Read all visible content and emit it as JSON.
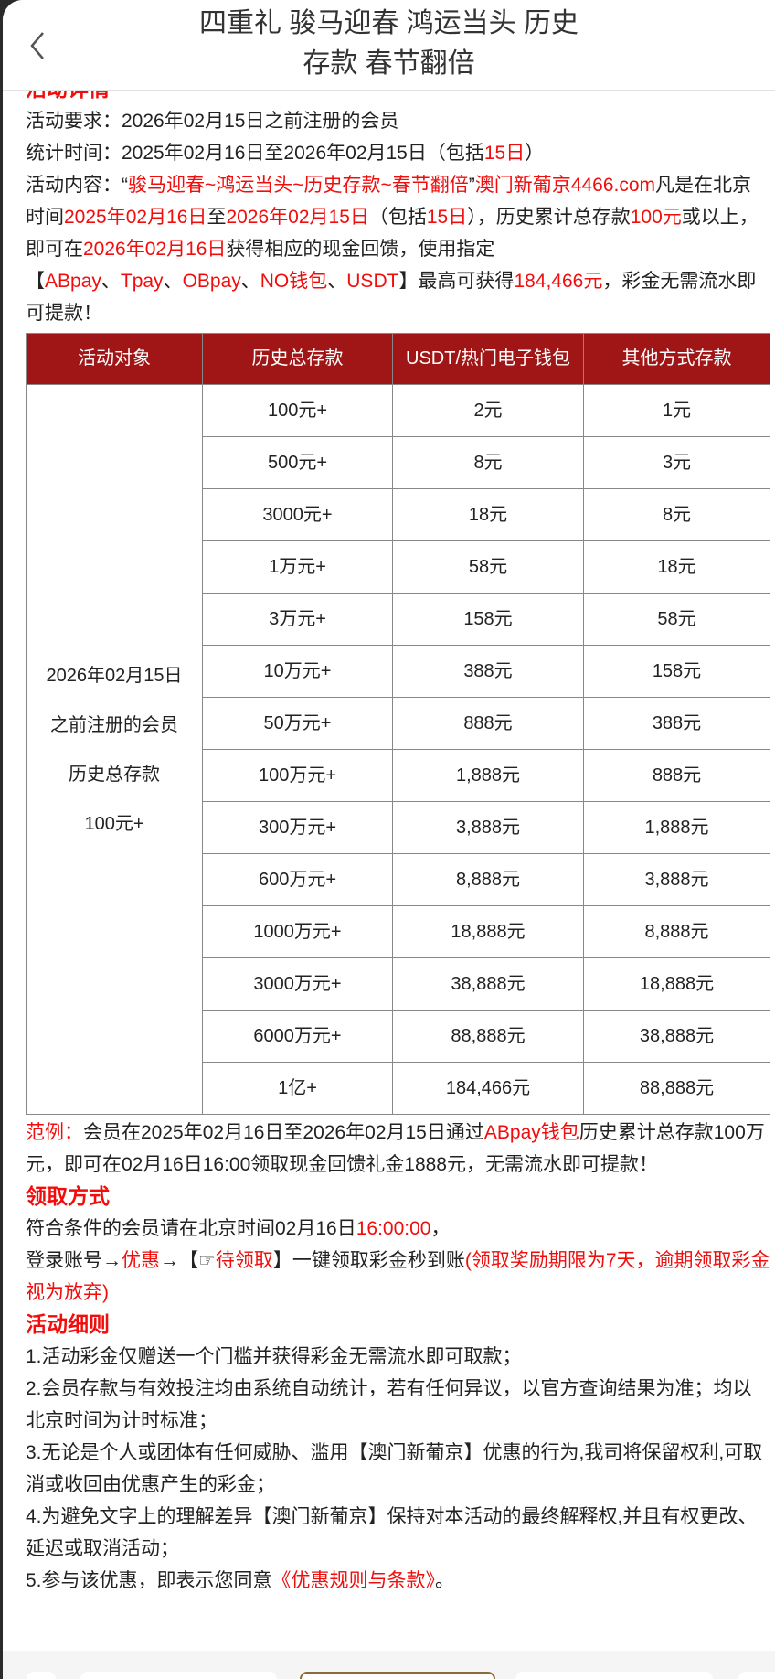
{
  "header": {
    "title_line1": "四重礼 骏马迎春 鸿运当头 历史",
    "title_line2": "存款 春节翻倍",
    "back_icon": "chevron-left-icon"
  },
  "details": {
    "heading": "活动详情",
    "req_label": "活动要求：",
    "req_value": "2026年02月15日之前注册的会员",
    "time_label": "统计时间：",
    "time_value": "2025年02月16日至2026年02月15日（包括",
    "time_red": "15日",
    "time_end": "）",
    "content_label": "活动内容：“",
    "content_red1": "骏马迎春~鸿运当头~历史存款~春节翻倍",
    "content_q": "”",
    "content_red2": "澳门新葡京4466.com",
    "content_t1": "凡是在北京时间",
    "content_red3": "2025年02月16日",
    "content_t2": "至",
    "content_red4": "2026年02月15日",
    "content_t3": "（包括",
    "content_red5": "15日",
    "content_t4": "），历史累计总存款",
    "content_red6": "100元",
    "content_t5": "或以上，即可在",
    "content_red7": "2026年02月16日",
    "content_t6": "获得相应的现金回馈，使用指定",
    "content_t7": "【",
    "content_red8": "ABpay",
    "sep": "、",
    "content_red9": "Tpay",
    "content_red10": "OBpay",
    "content_red11": "NO钱包",
    "content_red12": "USDT",
    "content_t8": "】最高可获得",
    "content_red13": "184,466元",
    "content_t9": "，彩金无需流水即可提款！"
  },
  "table": {
    "headers": [
      "活动对象",
      "历史总存款",
      "USDT/热门电子钱包",
      "其他方式存款"
    ],
    "object_lines": [
      "2026年02月15日",
      "之前注册的会员",
      "历史总存款",
      "100元+"
    ],
    "rows": [
      [
        "100元+",
        "2元",
        "1元"
      ],
      [
        "500元+",
        "8元",
        "3元"
      ],
      [
        "3000元+",
        "18元",
        "8元"
      ],
      [
        "1万元+",
        "58元",
        "18元"
      ],
      [
        "3万元+",
        "158元",
        "58元"
      ],
      [
        "10万元+",
        "388元",
        "158元"
      ],
      [
        "50万元+",
        "888元",
        "388元"
      ],
      [
        "100万元+",
        "1,888元",
        "888元"
      ],
      [
        "300万元+",
        "3,888元",
        "1,888元"
      ],
      [
        "600万元+",
        "8,888元",
        "3,888元"
      ],
      [
        "1000万元+",
        "18,888元",
        "8,888元"
      ],
      [
        "3000万元+",
        "38,888元",
        "18,888元"
      ],
      [
        "6000万元+",
        "88,888元",
        "38,888元"
      ],
      [
        "1亿+",
        "184,466元",
        "88,888元"
      ]
    ],
    "header_color": "#a01616"
  },
  "example": {
    "label": "范例：",
    "t1": "会员在2025年02月16日至2026年02月15日通过",
    "red": "ABpay钱包",
    "t2": "历史累计总存款100万元，即可在02月16日16:00领取现金回馈礼金1888元，无需流水即可提款！"
  },
  "claim": {
    "heading": "领取方式",
    "l1": "符合条件的会员请在北京时间02月16日",
    "l1_red": "16:00:00",
    "l1_end": "，",
    "l2a": "登录账号→",
    "l2_red1": "优惠",
    "l2b": "→【☞",
    "l2_red2": "待领取",
    "l2c": "】一键领取彩金秒到账",
    "l2_red3": "(领取奖励期限为7天，逾期领取彩金视为放弃)"
  },
  "rules": {
    "heading": "活动细则",
    "items": [
      "1.活动彩金仅赠送一个门槛并获得彩金无需流水即可取款；",
      "2.会员存款与有效投注均由系统自动统计，若有任何异议，以官方查询结果为准；均以北京时间为计时标准；",
      "3.无论是个人或团体有任何威胁、滥用【澳门新葡京】优惠的行为,我司将保留权利,可取消或收回由优惠产生的彩金；",
      "4.为避免文字上的理解差异【澳门新葡京】保持对本活动的最终解释权,并且有权更改、延迟或取消活动；"
    ],
    "item5": "5.参与该优惠，即表示您同意",
    "item5_link": "《优惠规则与条款》",
    "item5_end": "。"
  }
}
